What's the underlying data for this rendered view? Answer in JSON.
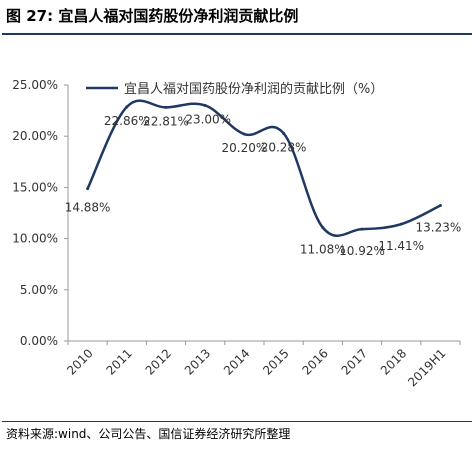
{
  "figure": {
    "title": "图 27:  宜昌人福对国药股份净利润贡献比例",
    "source": "资料来源:wind、公司公告、国信证券经济研究所整理"
  },
  "chart_data": {
    "type": "line",
    "categories": [
      "2010",
      "2011",
      "2012",
      "2013",
      "2014",
      "2015",
      "2016",
      "2017",
      "2018",
      "2019H1"
    ],
    "series": [
      {
        "name": "宜昌人福对国药股份净利润的贡献比例（%）",
        "values": [
          14.88,
          22.86,
          22.81,
          23.0,
          20.2,
          20.28,
          11.08,
          10.92,
          11.41,
          13.23
        ],
        "labels": [
          "14.88%",
          "22.86%",
          "22.81%",
          "23.00%",
          "20.20%",
          "20.28%",
          "11.08%",
          "10.92%",
          "11.41%",
          "13.23%"
        ],
        "color": "#1f3864"
      }
    ],
    "y_ticks": [
      "0.00%",
      "5.00%",
      "10.00%",
      "15.00%",
      "20.00%",
      "25.00%"
    ],
    "ylim": [
      0,
      25
    ],
    "legend": "top-left",
    "grid": false
  }
}
